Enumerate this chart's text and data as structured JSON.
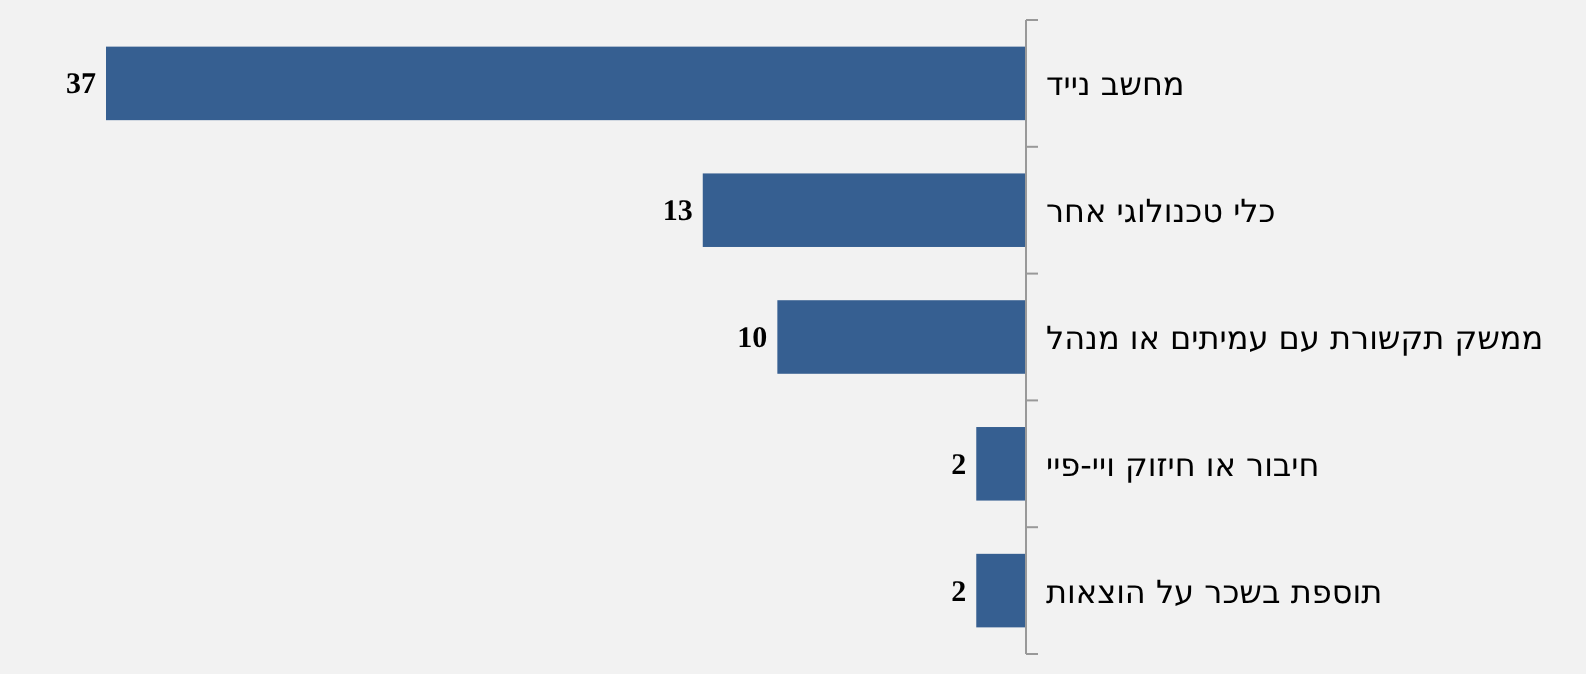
{
  "chart_data": {
    "type": "bar",
    "orientation": "horizontal",
    "categories": [
      "מחשב נייד",
      "כלי טכנולוגי אחר",
      "ממשק תקשורת עם עמיתים או מנהל",
      "חיבור או חיזוק ויי-פיי",
      "תוספת בשכר על הוצאות"
    ],
    "values": [
      37,
      13,
      10,
      2,
      2
    ],
    "color": "#365f91",
    "data_labels": true
  }
}
